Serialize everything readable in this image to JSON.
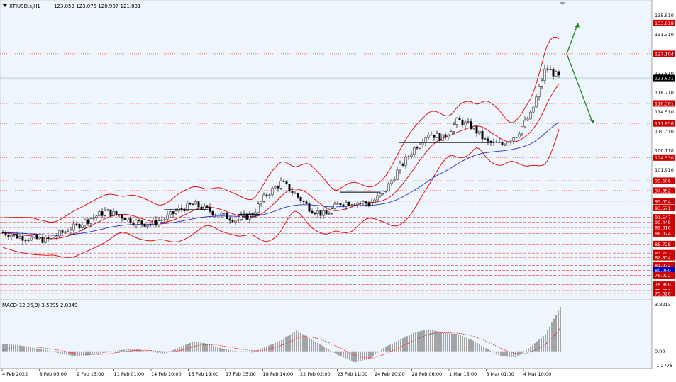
{
  "header": {
    "symbol": "XTIUSD.s,H1",
    "ohlc": "123.053 123.075 120.907 121.831"
  },
  "macd_header": "MACD(12,26,9) 3.5895 2.0349",
  "colors": {
    "background": "#eef5fd",
    "candle": "#000000",
    "bollinger": "#e01010",
    "ma": "#2233cc",
    "level_line": "#e05050",
    "arrow": "#1a8a1a",
    "price_tag_bg": "#cc0000",
    "current_tag_bg": "#000000",
    "blue_tag_bg": "#0000cc"
  },
  "chart_data": [
    {
      "type": "line",
      "title": "",
      "series": [
        {
          "values": [
            88.2,
            87.4,
            86.9,
            86.6,
            88.1,
            89.6,
            91.3,
            92.8,
            91.9,
            90.6,
            90.0,
            91.2,
            93.2,
            94.4,
            93.1,
            91.9,
            91.0,
            92.2,
            96.6,
            99.1,
            96.3,
            93.3,
            92.0,
            94.7,
            94.9,
            94.5,
            97.0,
            102.1,
            106.4,
            109.9,
            108.7,
            112.6,
            111.2,
            107.8,
            107.3,
            109.5,
            113.9,
            124.1,
            121.8
          ]
        }
      ],
      "ylim": [
        73.6,
        138.8
      ],
      "y_ticks": [
        "135.510",
        "131.310",
        "127.104",
        "122.910",
        "118.710",
        "114.510",
        "110.310",
        "106.110",
        "101.910"
      ],
      "price_tags": [
        "133.818",
        "127.104",
        "121.831",
        "116.301",
        "111.950",
        "104.530",
        "99.506",
        "97.352",
        "95.054",
        "93.571",
        "91.547",
        "90.449",
        "89.310",
        "88.024",
        "85.728",
        "83.742",
        "82.834",
        "81.072",
        "80.000",
        "78.922",
        "76.899",
        "75.606",
        "75.020"
      ],
      "x_ticks": [
        "4 Feb 2022",
        "8 Feb 06:00",
        "9 Feb 15:00",
        "11 Feb 01:00",
        "14 Feb 10:00",
        "15 Feb 19:00",
        "17 Feb 05:00",
        "18 Feb 14:00",
        "22 Feb 02:00",
        "23 Feb 11:00",
        "24 Feb 20:00",
        "28 Feb 06:00",
        "1 Mar 15:00",
        "3 Mar 01:00",
        "4 Mar 10:00"
      ]
    },
    {
      "type": "bar",
      "title": "MACD(12,26,9) 3.5895 2.0349",
      "ylim": [
        -1.2778,
        3.8213
      ],
      "y_ticks": [
        "3.8213",
        "0.00",
        "-1.2778"
      ],
      "series": [
        {
          "values": [
            0.6,
            0.5,
            0.3,
            0.1,
            -0.2,
            -0.4,
            -0.3,
            -0.1,
            0.1,
            0.2,
            0.0,
            -0.2,
            0.3,
            0.8,
            0.6,
            0.2,
            0.0,
            -0.1,
            0.4,
            0.9,
            1.7,
            1.0,
            0.3,
            -0.4,
            -0.9,
            -0.6,
            0.3,
            0.9,
            1.5,
            1.8,
            1.5,
            1.4,
            0.9,
            0.2,
            -0.4,
            -0.5,
            0.4,
            1.4,
            3.59
          ]
        }
      ]
    }
  ]
}
